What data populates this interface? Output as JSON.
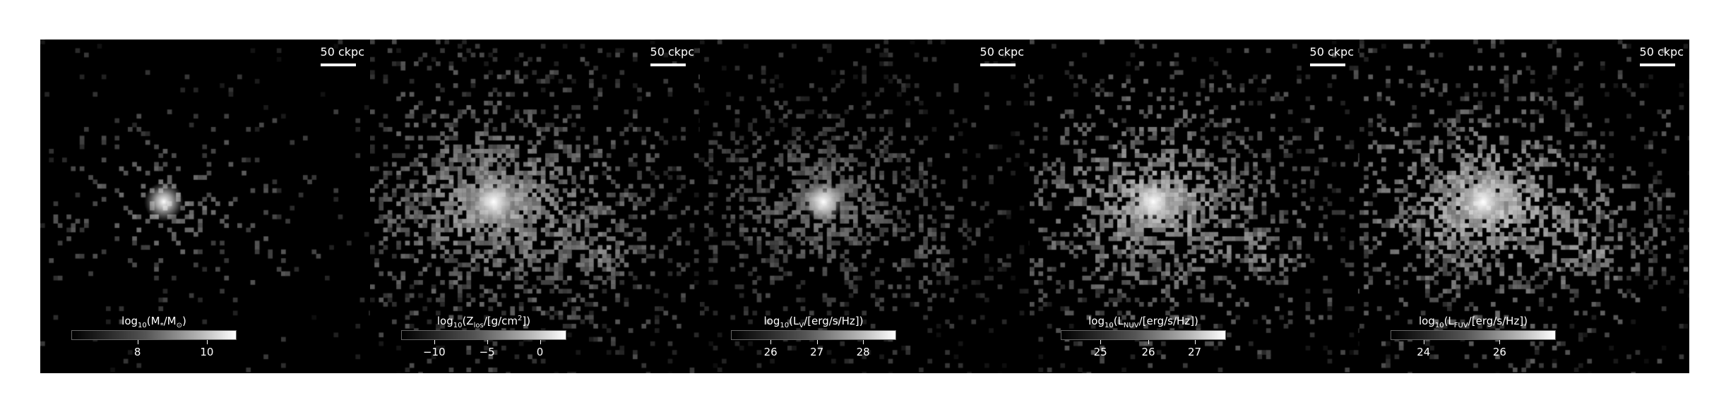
{
  "panels": [
    {
      "id": "stellar-mass",
      "scale_label": "50 ckpc",
      "cbar_prefix": "log",
      "cbar_sub": "10",
      "cbar_quantity": "(M",
      "cbar_quantity_sub": "*",
      "cbar_rest": "/M",
      "cbar_rest_sub": "⊙",
      "cbar_tail": ")",
      "ticks": [
        {
          "label": "8",
          "frac": 0.4
        },
        {
          "label": "10",
          "frac": 0.82
        }
      ],
      "fill": 0.15,
      "brightness": 0.55
    },
    {
      "id": "metal-surface-density",
      "scale_label": "50 ckpc",
      "cbar_prefix": "log",
      "cbar_sub": "10",
      "cbar_quantity": "(Z",
      "cbar_quantity_sub": "los",
      "cbar_rest": "/[g/cm",
      "cbar_rest_sub": "",
      "cbar_sup": "2",
      "cbar_tail": "])",
      "ticks": [
        {
          "label": "−10",
          "frac": 0.2
        },
        {
          "label": "−5",
          "frac": 0.52
        },
        {
          "label": "0",
          "frac": 0.84
        }
      ],
      "fill": 0.75,
      "brightness": 0.75
    },
    {
      "id": "v-band-luminosity",
      "scale_label": "50 ckpc",
      "cbar_prefix": "log",
      "cbar_sub": "10",
      "cbar_quantity": "(L",
      "cbar_quantity_sub": "V",
      "cbar_rest": "/[erg/s/Hz])",
      "cbar_rest_sub": "",
      "cbar_tail": "",
      "ticks": [
        {
          "label": "26",
          "frac": 0.24
        },
        {
          "label": "27",
          "frac": 0.52
        },
        {
          "label": "28",
          "frac": 0.8
        }
      ],
      "fill": 0.55,
      "brightness": 0.55
    },
    {
      "id": "near-uv-luminosity",
      "scale_label": "50 ckpc",
      "cbar_prefix": "log",
      "cbar_sub": "10",
      "cbar_quantity": "(L",
      "cbar_quantity_sub": "NUV",
      "cbar_rest": "/[erg/s/Hz])",
      "cbar_rest_sub": "",
      "cbar_tail": "",
      "ticks": [
        {
          "label": "25",
          "frac": 0.24
        },
        {
          "label": "26",
          "frac": 0.53
        },
        {
          "label": "27",
          "frac": 0.81
        }
      ],
      "fill": 0.65,
      "brightness": 0.8
    },
    {
      "id": "far-uv-luminosity",
      "scale_label": "50 ckpc",
      "cbar_prefix": "log",
      "cbar_sub": "10",
      "cbar_quantity": "(L",
      "cbar_quantity_sub": "FUV",
      "cbar_rest": "/[erg/s/Hz])",
      "cbar_rest_sub": "",
      "cbar_tail": "",
      "ticks": [
        {
          "label": "24",
          "frac": 0.2
        },
        {
          "label": "26",
          "frac": 0.66
        }
      ],
      "fill": 0.7,
      "brightness": 0.85
    }
  ]
}
